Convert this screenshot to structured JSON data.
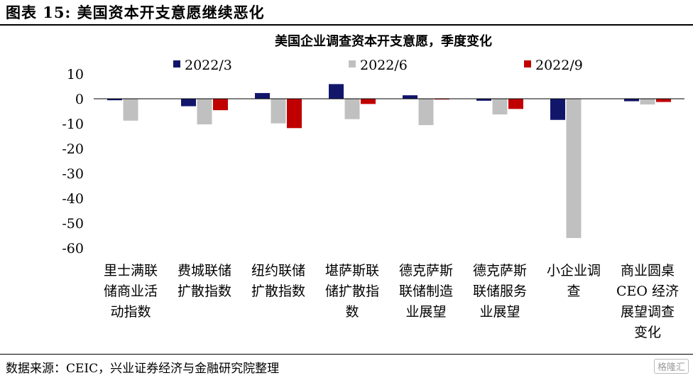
{
  "figure_title": "图表 15: 美国资本开支意愿继续恶化",
  "source_note": "数据来源：CEIC，兴业证券经济与金融研究院整理",
  "watermark": "格隆汇",
  "chart_data": {
    "type": "bar",
    "title": "美国企业调查资本开支意愿，季度变化",
    "categories": [
      [
        "里士满联",
        "储商业活",
        "动指数"
      ],
      [
        "费城联储",
        "扩散指数"
      ],
      [
        "纽约联储",
        "扩散指数"
      ],
      [
        "堪萨斯联",
        "储扩散指",
        "数"
      ],
      [
        "德克萨斯",
        "联储制造",
        "业展望"
      ],
      [
        "德克萨斯",
        "联储服务",
        "业展望"
      ],
      [
        "小企业调",
        "查"
      ],
      [
        "商业圆桌",
        "CEO 经济",
        "展望调查",
        "变化"
      ]
    ],
    "series": [
      {
        "name": "2022/3",
        "color": "#12166B",
        "values": [
          -0.6,
          -3.0,
          2.3,
          5.9,
          1.4,
          -0.8,
          -8.5,
          -1.0
        ]
      },
      {
        "name": "2022/6",
        "color": "#C0C0C0",
        "values": [
          -8.8,
          -10.3,
          -9.9,
          -8.2,
          -10.6,
          -6.3,
          -56.0,
          -2.3
        ]
      },
      {
        "name": "2022/9",
        "color": "#C00000",
        "values": [
          0.0,
          -4.6,
          -11.8,
          -2.1,
          -0.3,
          -4.1,
          0.0,
          -1.3
        ]
      }
    ],
    "ylim": [
      -60,
      10
    ],
    "yticks": [
      10,
      0,
      -10,
      -20,
      -30,
      -40,
      -50,
      -60
    ],
    "legend_position": "top",
    "grid": false
  }
}
